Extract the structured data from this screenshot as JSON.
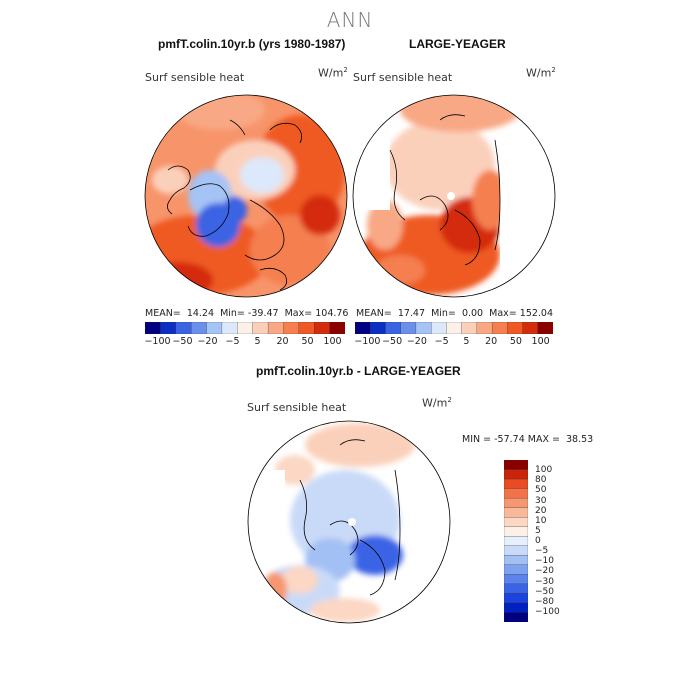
{
  "figure": {
    "title": "ANN",
    "colors": {
      "dark_red": "#7f0000",
      "red": "#e6380f",
      "orange": "#f5804e",
      "light_orange": "#f8b492",
      "peach": "#fbdccc",
      "pale": "#fdf0e8",
      "light_blue": "#c8ddf6",
      "blue": "#4a7fe6",
      "dark_blue": "#000080"
    }
  },
  "panels": [
    {
      "id": "left",
      "title": "pmfT.colin.10yr.b (yrs 1980-1987)",
      "variable_label": "Surf sensible heat",
      "units": "W/m",
      "units_exp": "2",
      "mean_label": "MEAN=",
      "mean": "14.24",
      "min_label": "Min=",
      "min": "-39.47",
      "max_label": "Max=",
      "max": "104.76"
    },
    {
      "id": "right",
      "title": "LARGE-YEAGER",
      "variable_label": "Surf sensible heat",
      "units": "W/m",
      "units_exp": "2",
      "mean_label": "MEAN=",
      "mean": "17.47",
      "min_label": "Min=",
      "min": "0.00",
      "max_label": "Max=",
      "max": "152.04"
    },
    {
      "id": "diff",
      "title": "pmfT.colin.10yr.b - LARGE-YEAGER",
      "variable_label": "Surf sensible heat",
      "units": "W/m",
      "units_exp": "2",
      "min_label": "MIN =",
      "min": "-57.74",
      "max_label": "MAX =",
      "max": "38.53"
    }
  ],
  "colorbars": {
    "horizontal": {
      "colors": [
        "#000080",
        "#0b2fc4",
        "#3a63e3",
        "#6a90ec",
        "#a5c3f4",
        "#dce8fb",
        "#fdf0e8",
        "#fbd0bb",
        "#f8a884",
        "#f57f4f",
        "#ef5a24",
        "#d42b0a",
        "#8a0000"
      ],
      "tick_labels": [
        "-100",
        "-50",
        "-20",
        "-5",
        "5",
        "20",
        "50",
        "100"
      ]
    },
    "vertical": {
      "colors": [
        "#000080",
        "#0020c0",
        "#1c44dc",
        "#3b63e6",
        "#5c82ec",
        "#7fa2f0",
        "#a3c0f4",
        "#c9daf8",
        "#e6effc",
        "#fdf0e8",
        "#fbd7c4",
        "#f9b899",
        "#f69770",
        "#f2734a",
        "#e94c22",
        "#c8250a",
        "#8a0000"
      ],
      "tick_labels": [
        "100",
        "80",
        "50",
        "30",
        "20",
        "10",
        "5",
        "0",
        "-5",
        "-10",
        "-20",
        "-30",
        "-50",
        "-80",
        "-100"
      ]
    }
  }
}
